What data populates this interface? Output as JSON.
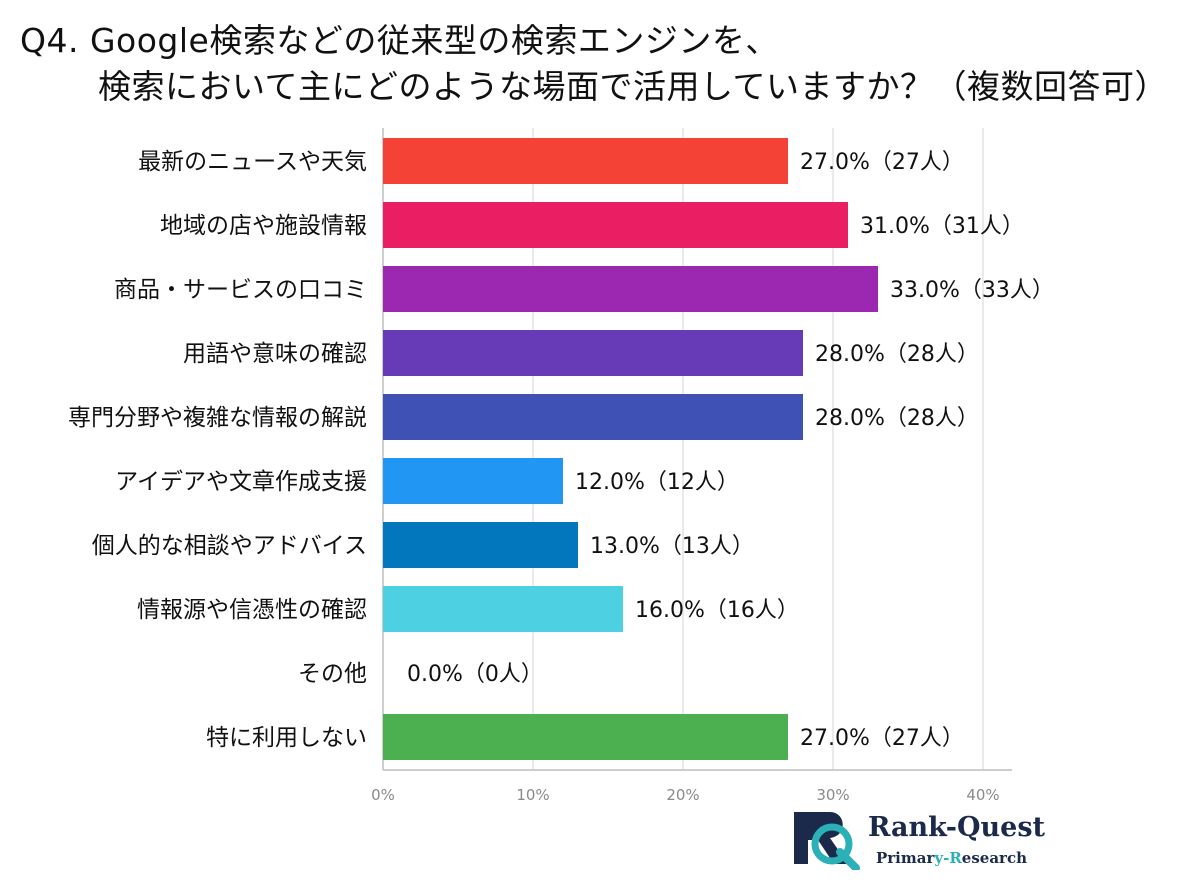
{
  "title": {
    "line1": "Q4. Google検索などの従来型の検索エンジンを、",
    "line2": "検索において主にどのような場面で活用していますか？（複数回答可）"
  },
  "chart_data": {
    "type": "bar",
    "orientation": "horizontal",
    "categories": [
      "最新のニュースや天気",
      "地域の店や施設情報",
      "商品・サービスの口コミ",
      "用語や意味の確認",
      "専門分野や複雑な情報の解説",
      "アイデアや文章作成支援",
      "個人的な相談やアドバイス",
      "情報源や信憑性の確認",
      "その他",
      "特に利用しない"
    ],
    "values": [
      27.0,
      31.0,
      33.0,
      28.0,
      28.0,
      12.0,
      13.0,
      16.0,
      0.0,
      27.0
    ],
    "data_labels": [
      "27.0%（27人）",
      "31.0%（31人）",
      "33.0%（33人）",
      "28.0%（28人）",
      "28.0%（28人）",
      "12.0%（12人）",
      "13.0%（13人）",
      "16.0%（16人）",
      "0.0%（0人）",
      "27.0%（27人）"
    ],
    "colors": [
      "#f44336",
      "#e91e63",
      "#9c27b0",
      "#673ab7",
      "#3f51b5",
      "#2196f3",
      "#0277bd",
      "#4dd0e1",
      "#9e9e9e",
      "#4caf50"
    ],
    "x_ticks": [
      "0%",
      "10%",
      "20%",
      "30%",
      "40%"
    ],
    "x_tick_values": [
      0,
      10,
      20,
      30,
      40
    ],
    "xlim": [
      0,
      40
    ],
    "grid": true,
    "unit": "%"
  },
  "logo": {
    "main": "Rank-Quest",
    "sub_parts": [
      "Primar",
      "y-R",
      "esearch"
    ],
    "colors": {
      "navy": "#1b2a4a",
      "teal": "#2bb0b8"
    }
  }
}
